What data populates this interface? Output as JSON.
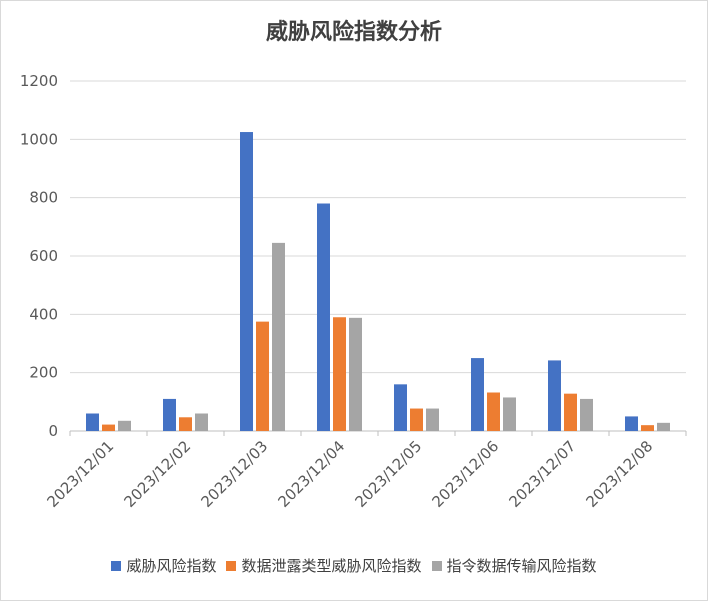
{
  "chart_data": {
    "type": "bar",
    "title": "威胁风险指数分析",
    "categories": [
      "2023/12/01",
      "2023/12/02",
      "2023/12/03",
      "2023/12/04",
      "2023/12/05",
      "2023/12/06",
      "2023/12/07",
      "2023/12/08"
    ],
    "series": [
      {
        "name": "威胁风险指数",
        "color": "#4472c4",
        "values": [
          60,
          110,
          1025,
          780,
          160,
          250,
          242,
          50
        ]
      },
      {
        "name": "数据泄露类型威胁风险指数",
        "color": "#ed7d31",
        "values": [
          22,
          47,
          375,
          390,
          77,
          132,
          128,
          20
        ]
      },
      {
        "name": "指令数据传输风险指数",
        "color": "#a5a5a5",
        "values": [
          35,
          60,
          645,
          388,
          77,
          115,
          110,
          28
        ]
      }
    ],
    "yticks": [
      "0",
      "200",
      "400",
      "600",
      "800",
      "1000",
      "1200"
    ],
    "ylim": [
      0,
      1200
    ],
    "grid": true,
    "legend_position": "bottom"
  }
}
